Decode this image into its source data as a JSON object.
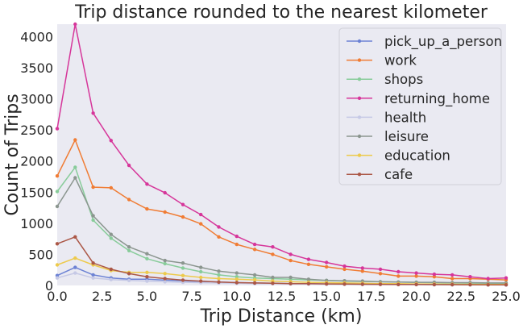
{
  "chart_data": {
    "type": "line",
    "title": "Trip distance rounded to the nearest kilometer",
    "xlabel": "Trip Distance (km)",
    "ylabel": "Count of Trips",
    "xlim": [
      0,
      25
    ],
    "ylim": [
      0,
      4200
    ],
    "x_ticks": [
      0,
      2.5,
      5,
      7.5,
      10,
      12.5,
      15,
      17.5,
      20,
      22.5,
      25
    ],
    "x_tick_labels": [
      "0.0",
      "2.5",
      "5.0",
      "7.5",
      "10.0",
      "12.5",
      "15.0",
      "17.5",
      "20.0",
      "22.5",
      "25.0"
    ],
    "y_ticks": [
      0,
      500,
      1000,
      1500,
      2000,
      2500,
      3000,
      3500,
      4000
    ],
    "y_tick_labels": [
      "0",
      "500",
      "1000",
      "1500",
      "2000",
      "2500",
      "3000",
      "3500",
      "4000"
    ],
    "grid": false,
    "legend_position": "top-right",
    "x": [
      0,
      1,
      2,
      3,
      4,
      5,
      6,
      7,
      8,
      9,
      10,
      11,
      12,
      13,
      14,
      15,
      16,
      17,
      18,
      19,
      20,
      21,
      22,
      23,
      24,
      25
    ],
    "series": [
      {
        "name": "pick_up_a_person",
        "color": "#6c82d4",
        "values": [
          160,
          290,
          170,
          120,
          100,
          100,
          85,
          75,
          65,
          55,
          45,
          40,
          35,
          30,
          28,
          25,
          22,
          20,
          18,
          16,
          15,
          14,
          13,
          12,
          11,
          10
        ]
      },
      {
        "name": "work",
        "color": "#f07c34",
        "values": [
          1760,
          2340,
          1580,
          1570,
          1380,
          1230,
          1180,
          1100,
          990,
          780,
          660,
          580,
          500,
          400,
          340,
          300,
          260,
          230,
          190,
          150,
          150,
          140,
          110,
          110,
          100,
          90
        ]
      },
      {
        "name": "shops",
        "color": "#88cc9a",
        "values": [
          1510,
          1900,
          1050,
          760,
          560,
          430,
          350,
          280,
          220,
          170,
          140,
          120,
          110,
          100,
          90,
          80,
          70,
          65,
          60,
          55,
          50,
          45,
          40,
          38,
          35,
          30
        ]
      },
      {
        "name": "returning_home",
        "color": "#d6369a",
        "values": [
          2520,
          4200,
          2770,
          2330,
          1930,
          1630,
          1490,
          1300,
          1140,
          940,
          790,
          660,
          620,
          500,
          420,
          370,
          310,
          280,
          260,
          220,
          200,
          180,
          170,
          140,
          110,
          120
        ]
      },
      {
        "name": "health",
        "color": "#c6c9e6",
        "values": [
          120,
          200,
          120,
          95,
          80,
          70,
          60,
          50,
          45,
          40,
          35,
          30,
          28,
          25,
          22,
          20,
          18,
          16,
          15,
          14,
          13,
          12,
          11,
          10,
          9,
          8
        ]
      },
      {
        "name": "leisure",
        "color": "#8b968f",
        "values": [
          1270,
          1730,
          1120,
          820,
          620,
          510,
          400,
          360,
          290,
          230,
          200,
          170,
          130,
          130,
          100,
          80,
          75,
          70,
          60,
          55,
          50,
          50,
          45,
          45,
          40,
          40
        ]
      },
      {
        "name": "education",
        "color": "#edca4c",
        "values": [
          330,
          440,
          330,
          240,
          210,
          210,
          190,
          160,
          130,
          110,
          100,
          90,
          70,
          60,
          50,
          45,
          40,
          35,
          30,
          28,
          25,
          22,
          20,
          18,
          16,
          15
        ]
      },
      {
        "name": "cafe",
        "color": "#ab5746",
        "values": [
          670,
          780,
          360,
          260,
          190,
          140,
          110,
          85,
          70,
          55,
          45,
          40,
          35,
          30,
          28,
          25,
          22,
          20,
          18,
          16,
          15,
          14,
          13,
          12,
          11,
          10
        ]
      }
    ]
  }
}
